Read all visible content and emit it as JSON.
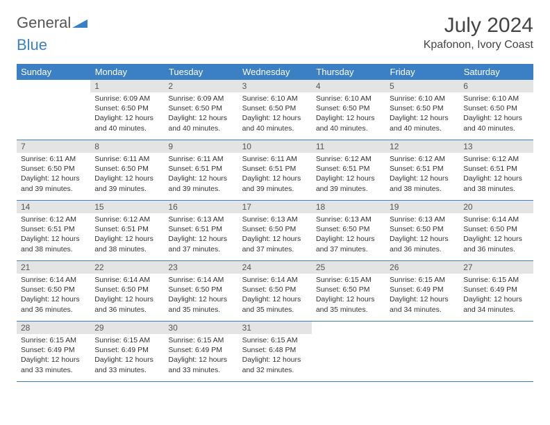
{
  "logo": {
    "text1": "General",
    "text2": "Blue"
  },
  "title": "July 2024",
  "location": "Kpafonon, Ivory Coast",
  "colors": {
    "header_bg": "#3b7fc4",
    "header_text": "#ffffff",
    "daynum_bg": "#e4e4e4",
    "border": "#3b7fc4",
    "body_text": "#333333",
    "background": "#ffffff"
  },
  "weekdays": [
    "Sunday",
    "Monday",
    "Tuesday",
    "Wednesday",
    "Thursday",
    "Friday",
    "Saturday"
  ],
  "weeks": [
    [
      {
        "n": "",
        "sr": "",
        "ss": "",
        "dl": ""
      },
      {
        "n": "1",
        "sr": "6:09 AM",
        "ss": "6:50 PM",
        "dl": "12 hours and 40 minutes."
      },
      {
        "n": "2",
        "sr": "6:09 AM",
        "ss": "6:50 PM",
        "dl": "12 hours and 40 minutes."
      },
      {
        "n": "3",
        "sr": "6:10 AM",
        "ss": "6:50 PM",
        "dl": "12 hours and 40 minutes."
      },
      {
        "n": "4",
        "sr": "6:10 AM",
        "ss": "6:50 PM",
        "dl": "12 hours and 40 minutes."
      },
      {
        "n": "5",
        "sr": "6:10 AM",
        "ss": "6:50 PM",
        "dl": "12 hours and 40 minutes."
      },
      {
        "n": "6",
        "sr": "6:10 AM",
        "ss": "6:50 PM",
        "dl": "12 hours and 40 minutes."
      }
    ],
    [
      {
        "n": "7",
        "sr": "6:11 AM",
        "ss": "6:50 PM",
        "dl": "12 hours and 39 minutes."
      },
      {
        "n": "8",
        "sr": "6:11 AM",
        "ss": "6:50 PM",
        "dl": "12 hours and 39 minutes."
      },
      {
        "n": "9",
        "sr": "6:11 AM",
        "ss": "6:51 PM",
        "dl": "12 hours and 39 minutes."
      },
      {
        "n": "10",
        "sr": "6:11 AM",
        "ss": "6:51 PM",
        "dl": "12 hours and 39 minutes."
      },
      {
        "n": "11",
        "sr": "6:12 AM",
        "ss": "6:51 PM",
        "dl": "12 hours and 39 minutes."
      },
      {
        "n": "12",
        "sr": "6:12 AM",
        "ss": "6:51 PM",
        "dl": "12 hours and 38 minutes."
      },
      {
        "n": "13",
        "sr": "6:12 AM",
        "ss": "6:51 PM",
        "dl": "12 hours and 38 minutes."
      }
    ],
    [
      {
        "n": "14",
        "sr": "6:12 AM",
        "ss": "6:51 PM",
        "dl": "12 hours and 38 minutes."
      },
      {
        "n": "15",
        "sr": "6:12 AM",
        "ss": "6:51 PM",
        "dl": "12 hours and 38 minutes."
      },
      {
        "n": "16",
        "sr": "6:13 AM",
        "ss": "6:51 PM",
        "dl": "12 hours and 37 minutes."
      },
      {
        "n": "17",
        "sr": "6:13 AM",
        "ss": "6:50 PM",
        "dl": "12 hours and 37 minutes."
      },
      {
        "n": "18",
        "sr": "6:13 AM",
        "ss": "6:50 PM",
        "dl": "12 hours and 37 minutes."
      },
      {
        "n": "19",
        "sr": "6:13 AM",
        "ss": "6:50 PM",
        "dl": "12 hours and 36 minutes."
      },
      {
        "n": "20",
        "sr": "6:14 AM",
        "ss": "6:50 PM",
        "dl": "12 hours and 36 minutes."
      }
    ],
    [
      {
        "n": "21",
        "sr": "6:14 AM",
        "ss": "6:50 PM",
        "dl": "12 hours and 36 minutes."
      },
      {
        "n": "22",
        "sr": "6:14 AM",
        "ss": "6:50 PM",
        "dl": "12 hours and 36 minutes."
      },
      {
        "n": "23",
        "sr": "6:14 AM",
        "ss": "6:50 PM",
        "dl": "12 hours and 35 minutes."
      },
      {
        "n": "24",
        "sr": "6:14 AM",
        "ss": "6:50 PM",
        "dl": "12 hours and 35 minutes."
      },
      {
        "n": "25",
        "sr": "6:15 AM",
        "ss": "6:50 PM",
        "dl": "12 hours and 35 minutes."
      },
      {
        "n": "26",
        "sr": "6:15 AM",
        "ss": "6:49 PM",
        "dl": "12 hours and 34 minutes."
      },
      {
        "n": "27",
        "sr": "6:15 AM",
        "ss": "6:49 PM",
        "dl": "12 hours and 34 minutes."
      }
    ],
    [
      {
        "n": "28",
        "sr": "6:15 AM",
        "ss": "6:49 PM",
        "dl": "12 hours and 33 minutes."
      },
      {
        "n": "29",
        "sr": "6:15 AM",
        "ss": "6:49 PM",
        "dl": "12 hours and 33 minutes."
      },
      {
        "n": "30",
        "sr": "6:15 AM",
        "ss": "6:49 PM",
        "dl": "12 hours and 33 minutes."
      },
      {
        "n": "31",
        "sr": "6:15 AM",
        "ss": "6:48 PM",
        "dl": "12 hours and 32 minutes."
      },
      {
        "n": "",
        "sr": "",
        "ss": "",
        "dl": ""
      },
      {
        "n": "",
        "sr": "",
        "ss": "",
        "dl": ""
      },
      {
        "n": "",
        "sr": "",
        "ss": "",
        "dl": ""
      }
    ]
  ],
  "labels": {
    "sunrise": "Sunrise:",
    "sunset": "Sunset:",
    "daylight": "Daylight:"
  }
}
